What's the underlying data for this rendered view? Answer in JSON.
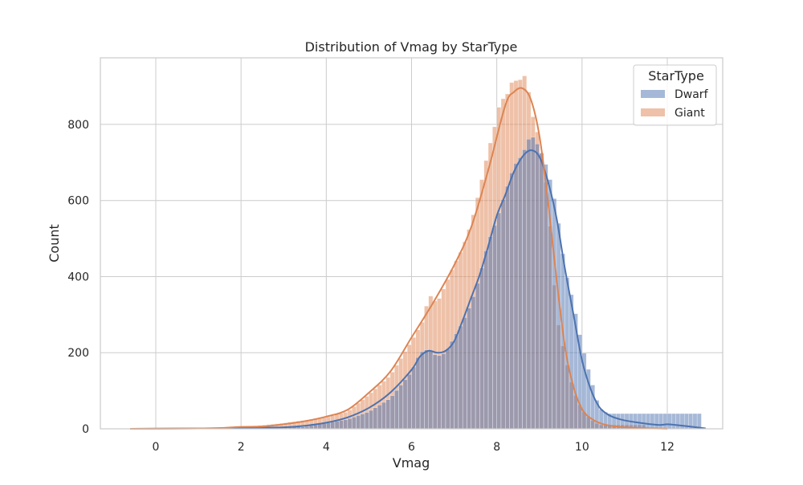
{
  "chart_data": {
    "type": "histogram",
    "title": "Distribution of Vmag by StarType",
    "xlabel": "Vmag",
    "ylabel": "Count",
    "xlim": [
      -1.3,
      13.3
    ],
    "ylim": [
      0,
      975
    ],
    "x_ticks": [
      0,
      2,
      4,
      6,
      8,
      10,
      12
    ],
    "y_ticks": [
      0,
      200,
      400,
      600,
      800
    ],
    "grid": true,
    "bin_width": 0.1,
    "legend": {
      "title": "StarType",
      "placement": "top-right"
    },
    "series": [
      {
        "name": "Dwarf",
        "color": "#4c72b0",
        "kde": [
          [
            -0.6,
            0
          ],
          [
            1,
            1
          ],
          [
            2,
            2
          ],
          [
            3,
            4
          ],
          [
            3.5,
            8
          ],
          [
            4,
            16
          ],
          [
            4.5,
            30
          ],
          [
            5,
            55
          ],
          [
            5.5,
            95
          ],
          [
            6,
            155
          ],
          [
            6.2,
            190
          ],
          [
            6.4,
            205
          ],
          [
            6.6,
            200
          ],
          [
            6.8,
            205
          ],
          [
            7,
            230
          ],
          [
            7.2,
            285
          ],
          [
            7.4,
            345
          ],
          [
            7.6,
            405
          ],
          [
            7.8,
            480
          ],
          [
            8,
            560
          ],
          [
            8.2,
            615
          ],
          [
            8.4,
            675
          ],
          [
            8.6,
            715
          ],
          [
            8.8,
            732
          ],
          [
            9,
            715
          ],
          [
            9.2,
            650
          ],
          [
            9.4,
            555
          ],
          [
            9.6,
            420
          ],
          [
            9.8,
            300
          ],
          [
            10,
            180
          ],
          [
            10.2,
            105
          ],
          [
            10.4,
            58
          ],
          [
            10.6,
            38
          ],
          [
            10.8,
            28
          ],
          [
            11,
            22
          ],
          [
            11.4,
            15
          ],
          [
            11.8,
            10
          ],
          [
            12,
            12
          ],
          [
            12.2,
            10
          ],
          [
            12.6,
            5
          ],
          [
            12.9,
            1
          ]
        ],
        "bars": [
          [
            3.5,
            5
          ],
          [
            4,
            15
          ],
          [
            4.5,
            25
          ],
          [
            5,
            45
          ],
          [
            5.5,
            80
          ],
          [
            6,
            150
          ],
          [
            6.2,
            200
          ],
          [
            6.4,
            210
          ],
          [
            6.6,
            190
          ],
          [
            6.8,
            200
          ],
          [
            7,
            240
          ],
          [
            7.2,
            280
          ],
          [
            7.4,
            330
          ],
          [
            7.6,
            400
          ],
          [
            7.8,
            490
          ],
          [
            8,
            550
          ],
          [
            8.2,
            620
          ],
          [
            8.4,
            690
          ],
          [
            8.6,
            720
          ],
          [
            8.8,
            775
          ],
          [
            9,
            740
          ],
          [
            9.2,
            680
          ],
          [
            9.4,
            580
          ],
          [
            9.6,
            420
          ],
          [
            9.8,
            330
          ],
          [
            10,
            220
          ],
          [
            10.2,
            135
          ],
          [
            10.4,
            55
          ],
          [
            10.6,
            40
          ]
        ]
      },
      {
        "name": "Giant",
        "color": "#dd8452",
        "kde": [
          [
            -0.6,
            0
          ],
          [
            1,
            1
          ],
          [
            1.5,
            2
          ],
          [
            2,
            5
          ],
          [
            2.5,
            6
          ],
          [
            3,
            12
          ],
          [
            3.5,
            20
          ],
          [
            4,
            32
          ],
          [
            4.5,
            50
          ],
          [
            5,
            95
          ],
          [
            5.5,
            150
          ],
          [
            6,
            240
          ],
          [
            6.5,
            330
          ],
          [
            7,
            430
          ],
          [
            7.4,
            530
          ],
          [
            7.8,
            680
          ],
          [
            8.2,
            850
          ],
          [
            8.4,
            885
          ],
          [
            8.6,
            895
          ],
          [
            8.8,
            865
          ],
          [
            9,
            770
          ],
          [
            9.2,
            600
          ],
          [
            9.4,
            395
          ],
          [
            9.6,
            215
          ],
          [
            9.8,
            110
          ],
          [
            10,
            52
          ],
          [
            10.2,
            28
          ],
          [
            10.5,
            12
          ],
          [
            11,
            4
          ],
          [
            12,
            0
          ]
        ],
        "bars": [
          [
            2,
            4
          ],
          [
            3,
            15
          ],
          [
            4,
            30
          ],
          [
            4.5,
            45
          ],
          [
            5,
            90
          ],
          [
            5.5,
            140
          ],
          [
            6,
            230
          ],
          [
            6.3,
            290
          ],
          [
            6.4,
            355
          ],
          [
            6.6,
            330
          ],
          [
            6.8,
            380
          ],
          [
            7,
            430
          ],
          [
            7.2,
            475
          ],
          [
            7.4,
            540
          ],
          [
            7.6,
            630
          ],
          [
            7.8,
            730
          ],
          [
            8,
            815
          ],
          [
            8.1,
            875
          ],
          [
            8.2,
            860
          ],
          [
            8.3,
            900
          ],
          [
            8.4,
            920
          ],
          [
            8.5,
            910
          ],
          [
            8.6,
            925
          ],
          [
            8.7,
            930
          ],
          [
            8.8,
            840
          ],
          [
            9,
            760
          ],
          [
            9.2,
            610
          ],
          [
            9.4,
            300
          ],
          [
            9.6,
            190
          ],
          [
            9.8,
            100
          ],
          [
            10,
            50
          ],
          [
            10.2,
            25
          ],
          [
            10.4,
            10
          ]
        ]
      }
    ]
  }
}
